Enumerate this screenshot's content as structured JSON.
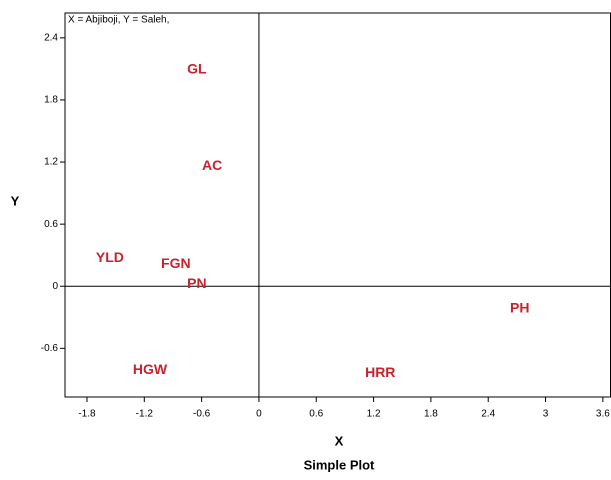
{
  "chart_data": {
    "type": "scatter",
    "title": "Simple Plot",
    "x_label": "X",
    "y_label": "Y",
    "annotation": "X = Abjiboji, Y = Saleh,",
    "labels": [
      "GL",
      "AC",
      "YLD",
      "FGN",
      "PN",
      "PH",
      "HGW",
      "HRR"
    ],
    "x": [
      -0.65,
      -0.49,
      -1.56,
      -0.87,
      -0.65,
      2.73,
      -1.14,
      1.27
    ],
    "y": [
      2.09,
      1.16,
      0.27,
      0.21,
      0.02,
      -0.22,
      -0.81,
      -0.84
    ],
    "color": "#c8232c",
    "xlim": [
      -2.03,
      3.68
    ],
    "ylim": [
      -1.07,
      2.64
    ],
    "xticks": [
      -1.8,
      -1.2,
      -0.6,
      0,
      0.6,
      1.2,
      1.8,
      2.4,
      3,
      3.6
    ],
    "yticks": [
      -0.6,
      0,
      0.6,
      1.2,
      1.8,
      2.4
    ],
    "zero_lines": true
  }
}
